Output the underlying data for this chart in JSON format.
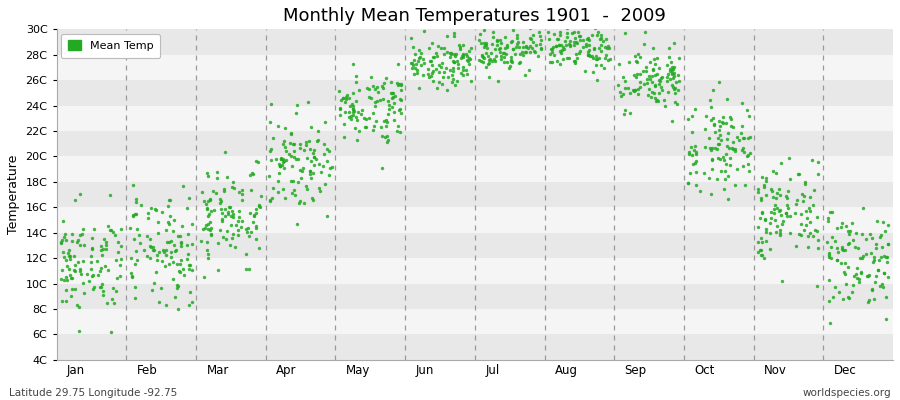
{
  "title": "Monthly Mean Temperatures 1901  -  2009",
  "ylabel": "Temperature",
  "footer_left": "Latitude 29.75 Longitude -92.75",
  "footer_right": "worldspecies.org",
  "legend_label": "Mean Temp",
  "dot_color": "#22aa22",
  "background_color": "#ffffff",
  "band_color_light": "#f5f5f5",
  "band_color_dark": "#e8e8e8",
  "ylim": [
    4,
    30
  ],
  "ytick_labels": [
    "4C",
    "6C",
    "8C",
    "10C",
    "12C",
    "14C",
    "16C",
    "18C",
    "20C",
    "22C",
    "24C",
    "26C",
    "28C",
    "30C"
  ],
  "ytick_vals": [
    4,
    6,
    8,
    10,
    12,
    14,
    16,
    18,
    20,
    22,
    24,
    26,
    28,
    30
  ],
  "month_names": [
    "Jan",
    "Feb",
    "Mar",
    "Apr",
    "May",
    "Jun",
    "Jul",
    "Aug",
    "Sep",
    "Oct",
    "Nov",
    "Dec"
  ],
  "monthly_means": [
    11.5,
    12.5,
    15.5,
    19.5,
    24.0,
    27.5,
    28.5,
    28.5,
    26.0,
    21.0,
    15.5,
    12.0
  ],
  "monthly_stds": [
    2.0,
    2.2,
    2.0,
    1.8,
    1.4,
    1.0,
    0.9,
    0.9,
    1.4,
    1.8,
    2.0,
    2.0
  ],
  "years": 109,
  "seed": 42,
  "dot_size": 6,
  "dot_marker": "o"
}
